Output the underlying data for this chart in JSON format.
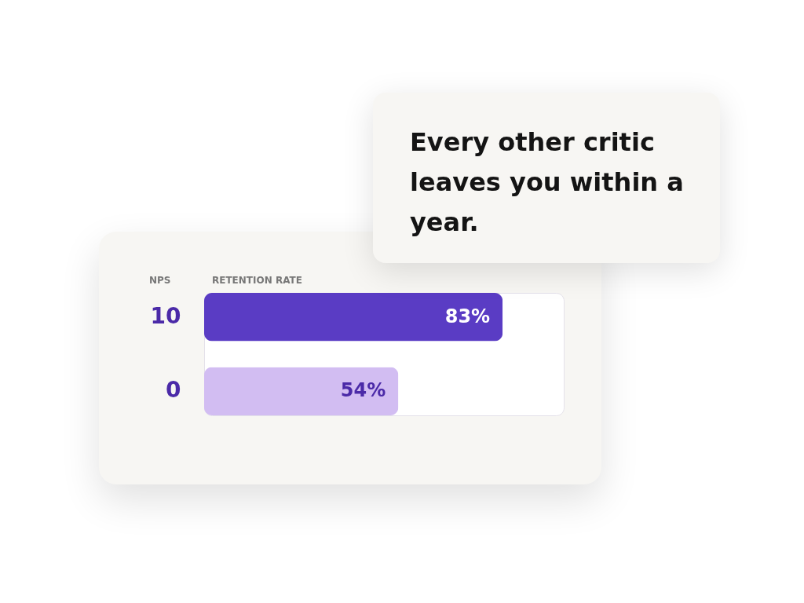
{
  "chart_data": {
    "type": "bar",
    "orientation": "horizontal",
    "ylabel": "NPS",
    "xlabel": "RETENTION RATE",
    "categories": [
      "10",
      "0"
    ],
    "values": [
      83,
      54
    ],
    "value_labels": [
      "83%",
      "54%"
    ],
    "colors": [
      "#5a3cc4",
      "#d2bdf2"
    ],
    "xlim": [
      0,
      100
    ],
    "tick_labels": "y",
    "annotations": [
      "Every other critic leaves you within a year."
    ]
  }
}
